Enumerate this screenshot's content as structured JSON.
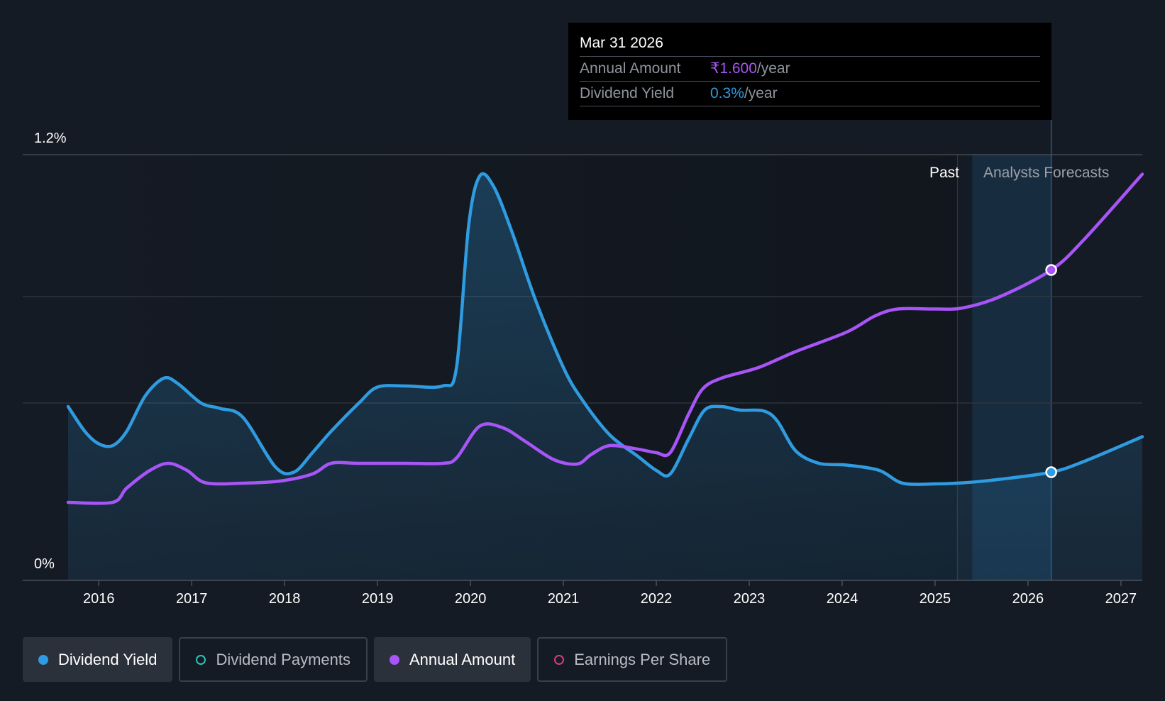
{
  "tooltip": {
    "date": "Mar 31 2026",
    "rows": [
      {
        "label": "Annual Amount",
        "value": "₹1.600",
        "suffix": "/year",
        "color": "#a855f7"
      },
      {
        "label": "Dividend Yield",
        "value": "0.3%",
        "suffix": "/year",
        "color": "#2f9be0"
      }
    ]
  },
  "regions": {
    "past_label": "Past",
    "forecast_label": "Analysts Forecasts"
  },
  "legend": [
    {
      "label": "Dividend Yield",
      "color": "#2f9be0",
      "active": true,
      "marker": "filled"
    },
    {
      "label": "Dividend Payments",
      "color": "#2ec4b6",
      "active": false,
      "marker": "hollow"
    },
    {
      "label": "Annual Amount",
      "color": "#a855f7",
      "active": true,
      "marker": "filled"
    },
    {
      "label": "Earnings Per Share",
      "color": "#d23f7a",
      "active": false,
      "marker": "hollow"
    }
  ],
  "chart_data": {
    "type": "line",
    "x_ticks": [
      "2016",
      "2017",
      "2018",
      "2019",
      "2020",
      "2021",
      "2022",
      "2023",
      "2024",
      "2025",
      "2026",
      "2027"
    ],
    "x_range": [
      2015.67,
      2027.23
    ],
    "y_labels": [
      "1.2%",
      "0%"
    ],
    "y_range": [
      0,
      1.2
    ],
    "grid": true,
    "past_end": 2025.24,
    "forecast_band": [
      2025.4,
      2026.25
    ],
    "series": [
      {
        "name": "Dividend Yield",
        "color": "#2f9be0",
        "area": true,
        "highlight_x": 2026.25,
        "points": [
          [
            2015.67,
            0.49
          ],
          [
            2015.85,
            0.42
          ],
          [
            2016.0,
            0.385
          ],
          [
            2016.15,
            0.38
          ],
          [
            2016.3,
            0.42
          ],
          [
            2016.5,
            0.52
          ],
          [
            2016.7,
            0.57
          ],
          [
            2016.85,
            0.555
          ],
          [
            2017.1,
            0.5
          ],
          [
            2017.3,
            0.485
          ],
          [
            2017.55,
            0.46
          ],
          [
            2017.9,
            0.32
          ],
          [
            2018.1,
            0.305
          ],
          [
            2018.3,
            0.36
          ],
          [
            2018.5,
            0.42
          ],
          [
            2018.8,
            0.5
          ],
          [
            2019.0,
            0.545
          ],
          [
            2019.3,
            0.548
          ],
          [
            2019.7,
            0.548
          ],
          [
            2019.85,
            0.6
          ],
          [
            2019.98,
            1.0
          ],
          [
            2020.1,
            1.14
          ],
          [
            2020.25,
            1.11
          ],
          [
            2020.45,
            0.98
          ],
          [
            2020.7,
            0.79
          ],
          [
            2021.0,
            0.6
          ],
          [
            2021.2,
            0.51
          ],
          [
            2021.5,
            0.41
          ],
          [
            2021.8,
            0.35
          ],
          [
            2022.0,
            0.31
          ],
          [
            2022.15,
            0.3
          ],
          [
            2022.35,
            0.4
          ],
          [
            2022.52,
            0.48
          ],
          [
            2022.7,
            0.49
          ],
          [
            2022.9,
            0.48
          ],
          [
            2023.15,
            0.478
          ],
          [
            2023.3,
            0.45
          ],
          [
            2023.5,
            0.365
          ],
          [
            2023.75,
            0.33
          ],
          [
            2024.05,
            0.325
          ],
          [
            2024.4,
            0.31
          ],
          [
            2024.65,
            0.274
          ],
          [
            2025.0,
            0.272
          ],
          [
            2025.3,
            0.275
          ],
          [
            2025.7,
            0.285
          ],
          [
            2026.25,
            0.305
          ],
          [
            2026.6,
            0.335
          ],
          [
            2027.23,
            0.405
          ]
        ]
      },
      {
        "name": "Annual Amount",
        "color": "#a855f7",
        "area": false,
        "highlight_x": 2026.25,
        "points": [
          [
            2015.67,
            0.22
          ],
          [
            2016.15,
            0.22
          ],
          [
            2016.3,
            0.26
          ],
          [
            2016.55,
            0.31
          ],
          [
            2016.75,
            0.33
          ],
          [
            2016.95,
            0.31
          ],
          [
            2017.15,
            0.275
          ],
          [
            2017.55,
            0.274
          ],
          [
            2017.95,
            0.28
          ],
          [
            2018.3,
            0.3
          ],
          [
            2018.5,
            0.33
          ],
          [
            2018.8,
            0.33
          ],
          [
            2019.3,
            0.33
          ],
          [
            2019.7,
            0.33
          ],
          [
            2019.85,
            0.345
          ],
          [
            2020.1,
            0.435
          ],
          [
            2020.35,
            0.43
          ],
          [
            2020.6,
            0.39
          ],
          [
            2020.9,
            0.34
          ],
          [
            2021.15,
            0.328
          ],
          [
            2021.3,
            0.355
          ],
          [
            2021.5,
            0.38
          ],
          [
            2021.8,
            0.37
          ],
          [
            2022.0,
            0.36
          ],
          [
            2022.15,
            0.36
          ],
          [
            2022.35,
            0.47
          ],
          [
            2022.5,
            0.54
          ],
          [
            2022.7,
            0.57
          ],
          [
            2023.1,
            0.6
          ],
          [
            2023.5,
            0.645
          ],
          [
            2024.05,
            0.7
          ],
          [
            2024.35,
            0.745
          ],
          [
            2024.6,
            0.765
          ],
          [
            2025.0,
            0.765
          ],
          [
            2025.3,
            0.768
          ],
          [
            2025.7,
            0.8
          ],
          [
            2026.25,
            0.875
          ],
          [
            2026.6,
            0.96
          ],
          [
            2027.23,
            1.145
          ]
        ]
      }
    ]
  }
}
